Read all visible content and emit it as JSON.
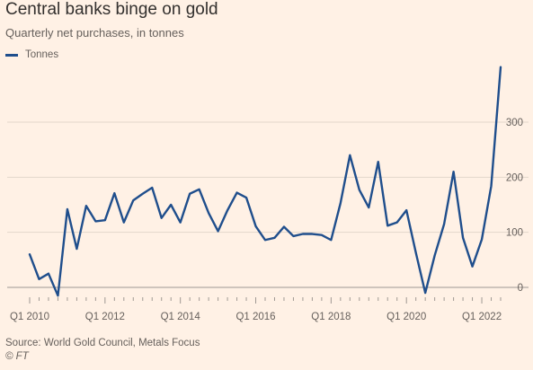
{
  "header": {
    "title": "Central banks binge on gold",
    "subtitle": "Quarterly net purchases, in tonnes"
  },
  "legend": {
    "label": "Tonnes",
    "color": "#1F4E8C"
  },
  "footer": {
    "source": "Source: World Gold Council, Metals Focus",
    "credit": "© FT"
  },
  "chart_data": {
    "type": "line",
    "title": "Central banks binge on gold",
    "subtitle": "Quarterly net purchases, in tonnes",
    "xlabel": "",
    "ylabel": "",
    "x_tick_labels": [
      "Q1 2010",
      "Q1 2012",
      "Q1 2014",
      "Q1 2016",
      "Q1 2018",
      "Q1 2020",
      "Q1 2022"
    ],
    "y_ticks": [
      0,
      100,
      200,
      300
    ],
    "ylim": [
      -25,
      420
    ],
    "y_axis_position": "right",
    "grid": true,
    "legend_position": "top-left",
    "series": [
      {
        "name": "Tonnes",
        "color": "#1F4E8C",
        "x": [
          "Q1 2010",
          "Q2 2010",
          "Q3 2010",
          "Q4 2010",
          "Q1 2011",
          "Q2 2011",
          "Q3 2011",
          "Q4 2011",
          "Q1 2012",
          "Q2 2012",
          "Q3 2012",
          "Q4 2012",
          "Q1 2013",
          "Q2 2013",
          "Q3 2013",
          "Q4 2013",
          "Q1 2014",
          "Q2 2014",
          "Q3 2014",
          "Q4 2014",
          "Q1 2015",
          "Q2 2015",
          "Q3 2015",
          "Q4 2015",
          "Q1 2016",
          "Q2 2016",
          "Q3 2016",
          "Q4 2016",
          "Q1 2017",
          "Q2 2017",
          "Q3 2017",
          "Q4 2017",
          "Q1 2018",
          "Q2 2018",
          "Q3 2018",
          "Q4 2018",
          "Q1 2019",
          "Q2 2019",
          "Q3 2019",
          "Q4 2019",
          "Q1 2020",
          "Q2 2020",
          "Q3 2020",
          "Q4 2020",
          "Q1 2021",
          "Q2 2021",
          "Q3 2021",
          "Q4 2021",
          "Q1 2022",
          "Q2 2022",
          "Q3 2022"
        ],
        "values": [
          60,
          15,
          25,
          -15,
          142,
          70,
          148,
          120,
          122,
          171,
          118,
          158,
          170,
          181,
          126,
          150,
          118,
          170,
          178,
          135,
          102,
          140,
          172,
          163,
          111,
          86,
          90,
          110,
          93,
          97,
          97,
          95,
          86,
          153,
          240,
          177,
          145,
          228,
          112,
          118,
          140,
          63,
          -10,
          58,
          115,
          210,
          90,
          38,
          87,
          184,
          400
        ]
      }
    ]
  }
}
